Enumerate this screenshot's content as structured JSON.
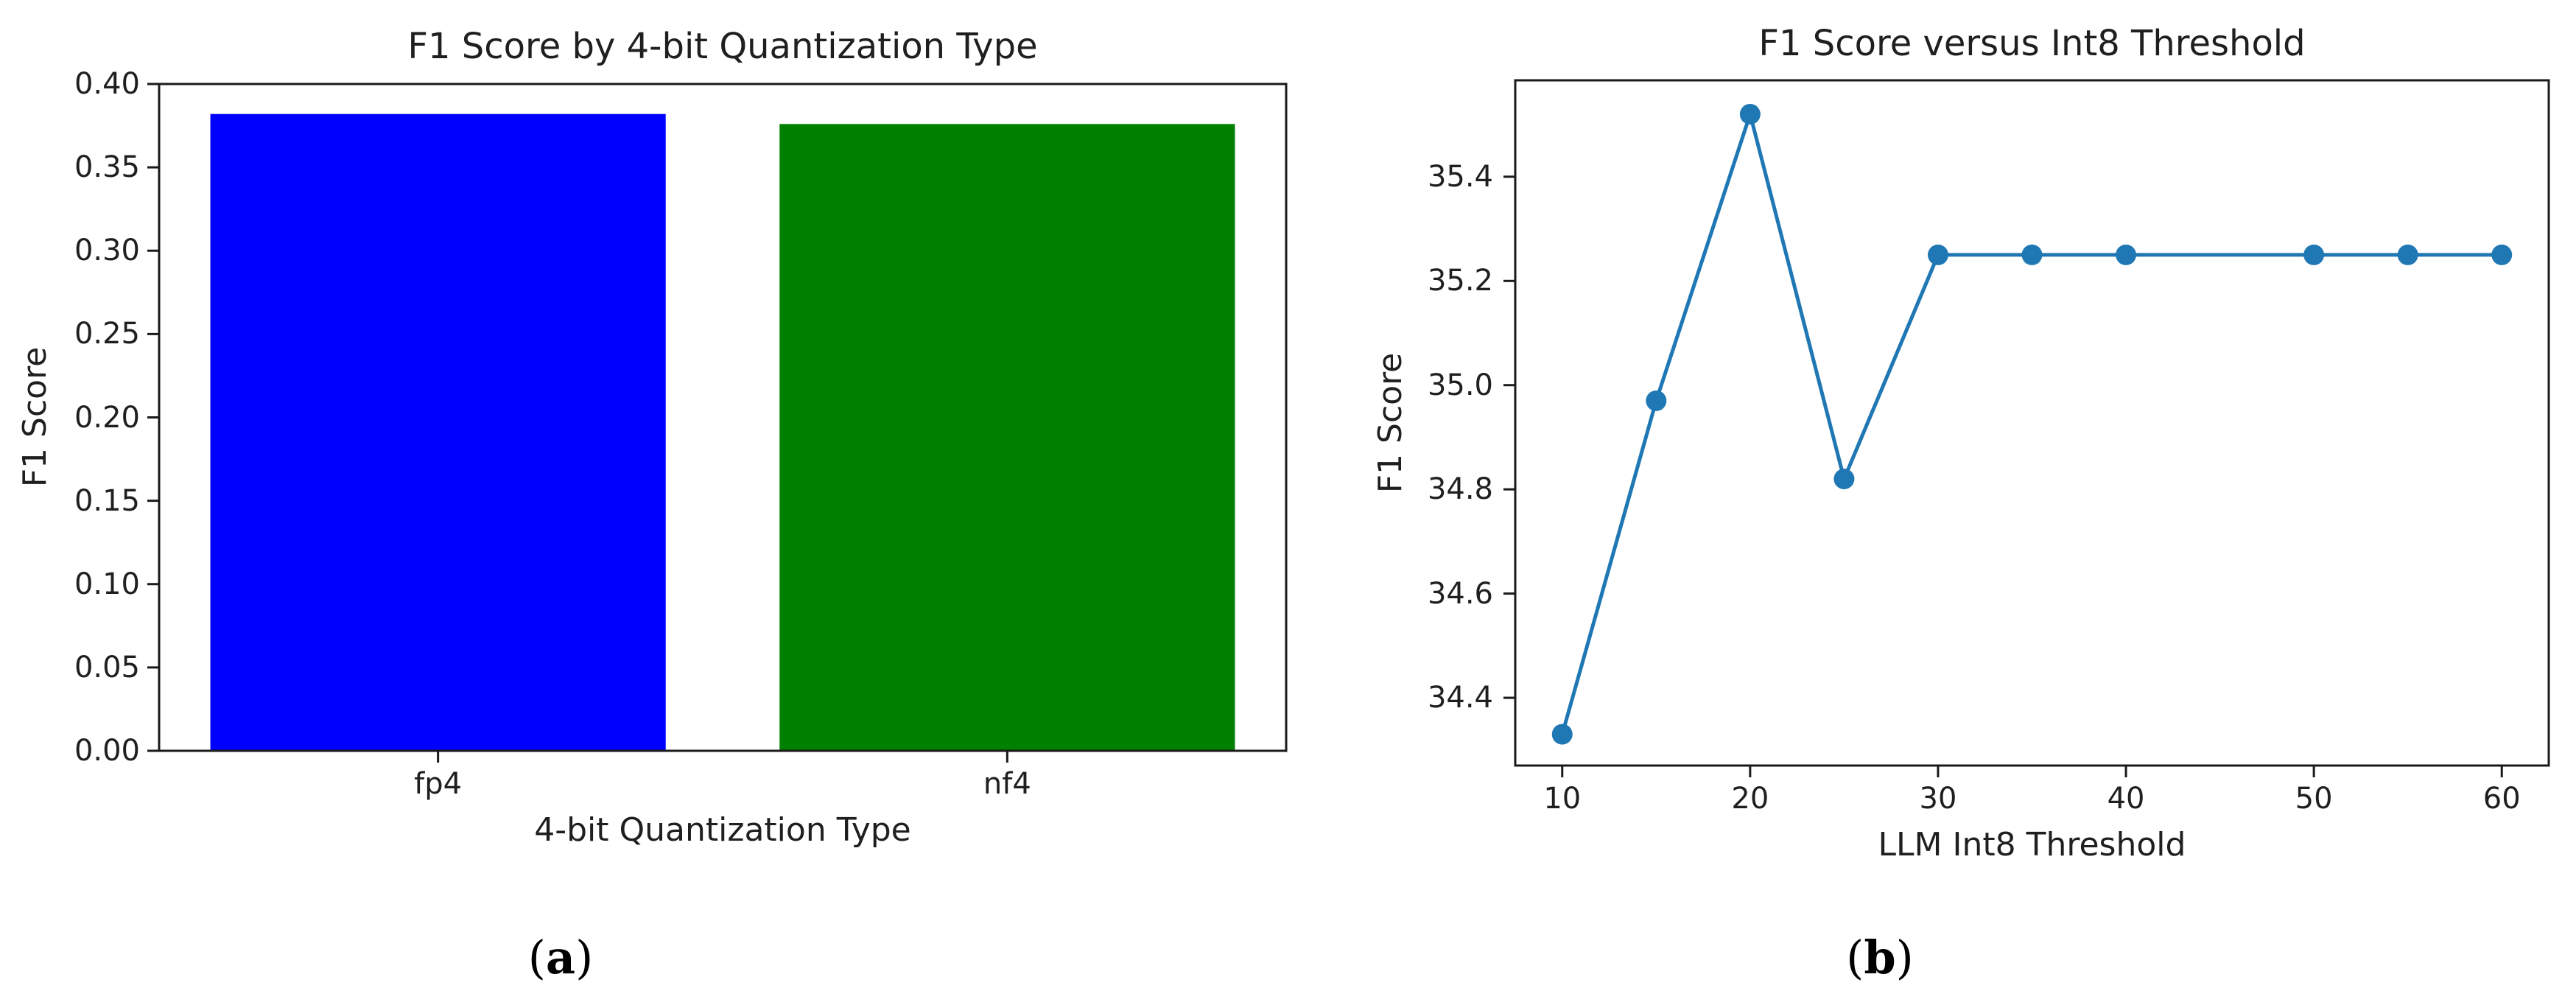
{
  "figure": {
    "background": "#ffffff",
    "captions": {
      "a": {
        "open": "(",
        "letter": "a",
        "close": ")"
      },
      "b": {
        "open": "(",
        "letter": "b",
        "close": ")"
      }
    }
  },
  "chart_data": [
    {
      "id": "bar-chart",
      "type": "bar",
      "title": "F1 Score by 4-bit Quantization Type",
      "xlabel": "4-bit Quantization Type",
      "ylabel": "F1 Score",
      "categories": [
        "fp4",
        "nf4"
      ],
      "values": [
        0.382,
        0.376
      ],
      "bar_colors": [
        "#0000ff",
        "#008000"
      ],
      "bar_positions": [
        0,
        1
      ],
      "bar_width": 0.8,
      "xlim": [
        -0.49,
        1.49
      ],
      "ylim": [
        0.0,
        0.4
      ],
      "ytick_values": [
        0.0,
        0.05,
        0.1,
        0.15,
        0.2,
        0.25,
        0.3,
        0.35,
        0.4
      ],
      "ytick_labels": [
        "0.00",
        "0.05",
        "0.10",
        "0.15",
        "0.20",
        "0.25",
        "0.30",
        "0.35",
        "0.40"
      ],
      "grid": false,
      "legend": "none"
    },
    {
      "id": "line-chart",
      "type": "line",
      "title": "F1 Score versus Int8 Threshold",
      "xlabel": "LLM Int8 Threshold",
      "ylabel": "F1 Score",
      "x": [
        10,
        15,
        20,
        25,
        30,
        35,
        40,
        50,
        55,
        60
      ],
      "y": [
        34.33,
        34.97,
        35.52,
        34.82,
        35.25,
        35.25,
        35.25,
        35.25,
        35.25,
        35.25
      ],
      "line_color": "#1f77b4",
      "marker": "circle",
      "xlim": [
        7.5,
        62.5
      ],
      "ylim": [
        34.27,
        35.585
      ],
      "xtick_values": [
        10,
        20,
        30,
        40,
        50,
        60
      ],
      "xtick_labels": [
        "10",
        "20",
        "30",
        "40",
        "50",
        "60"
      ],
      "ytick_values": [
        34.4,
        34.6,
        34.8,
        35.0,
        35.2,
        35.4
      ],
      "ytick_labels": [
        "34.4",
        "34.6",
        "34.8",
        "35.0",
        "35.2",
        "35.4"
      ],
      "grid": false,
      "legend": "none"
    }
  ]
}
